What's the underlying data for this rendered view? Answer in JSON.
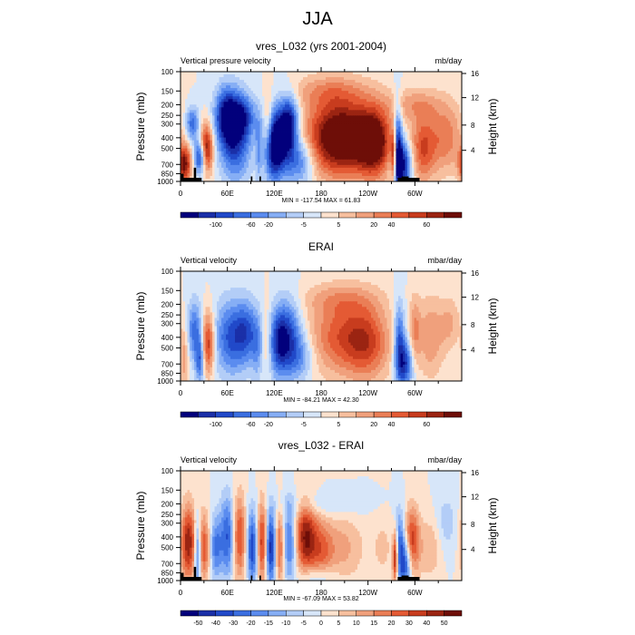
{
  "title": "JJA",
  "chart_data": [
    {
      "type": "heatmap",
      "title": "vres_L032 (yrs 2001-2004)",
      "left_label": "Vertical pressure velocity",
      "units": "mb/day",
      "ylabel": "Pressure (mb)",
      "ylabel_right": "Height (km)",
      "pressure_ticks": [
        "100",
        "150",
        "200",
        "250",
        "300",
        "400",
        "500",
        "700",
        "850",
        "1000"
      ],
      "height_ticks": [
        "16",
        "12",
        "8",
        "4"
      ],
      "lon_ticks": [
        "0",
        "60E",
        "120E",
        "180",
        "120W",
        "60W"
      ],
      "stats": "MIN = -117.54  MAX = 61.83",
      "colorbar_labels": [
        "-100",
        "-60",
        "-20",
        "-5",
        "5",
        "20",
        "40",
        "60"
      ],
      "colorbar_colors": [
        "#02007c",
        "#1a2fa8",
        "#2149c9",
        "#3a6ee0",
        "#5b8cef",
        "#86aef5",
        "#b3cdf7",
        "#d7e6f9",
        "#fde2ce",
        "#f7bf9e",
        "#f0a07c",
        "#ea7e56",
        "#e45a34",
        "#c83c1e",
        "#9b2412",
        "#6e0e08"
      ],
      "blobs": [
        {
          "lon": 5,
          "p": 700,
          "rx": 6,
          "ry": 0.55,
          "v": 0.9
        },
        {
          "lon": 15,
          "p": 300,
          "rx": 6,
          "ry": 0.5,
          "v": -0.6
        },
        {
          "lon": 25,
          "p": 600,
          "rx": 5,
          "ry": 0.5,
          "v": -0.9
        },
        {
          "lon": 33,
          "p": 500,
          "rx": 6,
          "ry": 0.7,
          "v": 0.95
        },
        {
          "lon": 58,
          "p": 250,
          "rx": 10,
          "ry": 0.8,
          "v": -0.75
        },
        {
          "lon": 70,
          "p": 400,
          "rx": 14,
          "ry": 1.2,
          "v": -0.8
        },
        {
          "lon": 80,
          "p": 250,
          "rx": 12,
          "ry": 0.6,
          "v": -0.5
        },
        {
          "lon": 100,
          "p": 500,
          "rx": 3,
          "ry": 1.0,
          "v": -0.3
        },
        {
          "lon": 112,
          "p": 300,
          "rx": 4,
          "ry": 0.9,
          "v": 0.35
        },
        {
          "lon": 118,
          "p": 500,
          "rx": 8,
          "ry": 1.0,
          "v": -0.8
        },
        {
          "lon": 128,
          "p": 400,
          "rx": 9,
          "ry": 1.0,
          "v": -0.7
        },
        {
          "lon": 140,
          "p": 300,
          "rx": 8,
          "ry": 0.8,
          "v": -0.9
        },
        {
          "lon": 152,
          "p": 650,
          "rx": 14,
          "ry": 0.7,
          "v": -0.6
        },
        {
          "lon": 190,
          "p": 400,
          "rx": 25,
          "ry": 1.1,
          "v": 0.8
        },
        {
          "lon": 225,
          "p": 400,
          "rx": 25,
          "ry": 1.1,
          "v": 0.8
        },
        {
          "lon": 250,
          "p": 450,
          "rx": 14,
          "ry": 1.0,
          "v": 0.75
        },
        {
          "lon": 190,
          "p": 150,
          "rx": 35,
          "ry": 0.5,
          "v": 0.3
        },
        {
          "lon": 278,
          "p": 500,
          "rx": 4,
          "ry": 1.3,
          "v": -0.9
        },
        {
          "lon": 285,
          "p": 700,
          "rx": 8,
          "ry": 0.7,
          "v": -0.95
        },
        {
          "lon": 273,
          "p": 600,
          "rx": 2.5,
          "ry": 0.8,
          "v": 0.9
        },
        {
          "lon": 310,
          "p": 500,
          "rx": 12,
          "ry": 1.0,
          "v": 0.6
        },
        {
          "lon": 340,
          "p": 400,
          "rx": 15,
          "ry": 1.0,
          "v": 0.45
        },
        {
          "lon": 300,
          "p": 200,
          "rx": 25,
          "ry": 0.5,
          "v": 0.3
        }
      ],
      "topography": [
        [
          0,
          4,
          850
        ],
        [
          17,
          20,
          750
        ],
        [
          90,
          92,
          900
        ],
        [
          101,
          103,
          900
        ],
        [
          283,
          292,
          900
        ]
      ]
    },
    {
      "type": "heatmap",
      "title": "ERAI",
      "left_label": "Vertical velocity",
      "units": "mbar/day",
      "ylabel": "Pressure (mb)",
      "ylabel_right": "Height (km)",
      "pressure_ticks": [
        "100",
        "150",
        "200",
        "250",
        "300",
        "400",
        "500",
        "700",
        "850",
        "1000"
      ],
      "height_ticks": [
        "16",
        "12",
        "8",
        "4"
      ],
      "lon_ticks": [
        "0",
        "60E",
        "120E",
        "180",
        "120W",
        "60W"
      ],
      "stats": "MIN = -84.21  MAX = 42.30",
      "colorbar_labels": [
        "-100",
        "-60",
        "-20",
        "-5",
        "5",
        "20",
        "40",
        "60"
      ],
      "colorbar_colors": [
        "#02007c",
        "#1a2fa8",
        "#2149c9",
        "#3a6ee0",
        "#5b8cef",
        "#86aef5",
        "#b3cdf7",
        "#d7e6f9",
        "#fde2ce",
        "#f7bf9e",
        "#f0a07c",
        "#ea7e56",
        "#e45a34",
        "#c83c1e",
        "#9b2412",
        "#6e0e08"
      ],
      "blobs": [
        {
          "lon": 5,
          "p": 600,
          "rx": 4,
          "ry": 0.9,
          "v": 0.35
        },
        {
          "lon": 18,
          "p": 350,
          "rx": 7,
          "ry": 0.9,
          "v": -0.55
        },
        {
          "lon": 25,
          "p": 650,
          "rx": 4,
          "ry": 0.7,
          "v": -0.6
        },
        {
          "lon": 35,
          "p": 450,
          "rx": 6,
          "ry": 0.9,
          "v": 0.8
        },
        {
          "lon": 65,
          "p": 400,
          "rx": 16,
          "ry": 1.1,
          "v": -0.65
        },
        {
          "lon": 85,
          "p": 350,
          "rx": 10,
          "ry": 0.9,
          "v": -0.45
        },
        {
          "lon": 98,
          "p": 500,
          "rx": 5,
          "ry": 1.0,
          "v": -0.3
        },
        {
          "lon": 110,
          "p": 400,
          "rx": 4,
          "ry": 1.0,
          "v": 0.25
        },
        {
          "lon": 125,
          "p": 450,
          "rx": 9,
          "ry": 1.0,
          "v": -0.55
        },
        {
          "lon": 138,
          "p": 400,
          "rx": 12,
          "ry": 1.1,
          "v": -0.7
        },
        {
          "lon": 155,
          "p": 600,
          "rx": 12,
          "ry": 0.7,
          "v": -0.35
        },
        {
          "lon": 205,
          "p": 400,
          "rx": 30,
          "ry": 1.1,
          "v": 0.55
        },
        {
          "lon": 240,
          "p": 450,
          "rx": 20,
          "ry": 1.1,
          "v": 0.5
        },
        {
          "lon": 205,
          "p": 180,
          "rx": 35,
          "ry": 0.5,
          "v": 0.25
        },
        {
          "lon": 280,
          "p": 450,
          "rx": 5,
          "ry": 1.2,
          "v": -0.65
        },
        {
          "lon": 288,
          "p": 700,
          "rx": 7,
          "ry": 0.7,
          "v": -0.7
        },
        {
          "lon": 300,
          "p": 350,
          "rx": 5,
          "ry": 1.0,
          "v": 0.35
        },
        {
          "lon": 320,
          "p": 400,
          "rx": 12,
          "ry": 1.2,
          "v": 0.35
        },
        {
          "lon": 345,
          "p": 300,
          "rx": 10,
          "ry": 0.8,
          "v": 0.25
        }
      ],
      "topography": []
    },
    {
      "type": "heatmap",
      "title": "vres_L032 - ERAI",
      "left_label": "Vertical velocity",
      "units": "mbar/day",
      "ylabel": "Pressure (mb)",
      "ylabel_right": "Height (km)",
      "pressure_ticks": [
        "100",
        "150",
        "200",
        "250",
        "300",
        "400",
        "500",
        "700",
        "850",
        "1000"
      ],
      "height_ticks": [
        "16",
        "12",
        "8",
        "4"
      ],
      "lon_ticks": [
        "0",
        "60E",
        "120E",
        "180",
        "120W",
        "60W"
      ],
      "stats": "MIN = -67.09  MAX = 53.82",
      "colorbar_labels": [
        "-50",
        "-40",
        "-30",
        "-20",
        "-15",
        "-10",
        "-5",
        "0",
        "5",
        "10",
        "15",
        "20",
        "30",
        "40",
        "50"
      ],
      "colorbar_colors": [
        "#02007c",
        "#1a2fa8",
        "#2149c9",
        "#3a6ee0",
        "#5b8cef",
        "#86aef5",
        "#b3cdf7",
        "#d7e6f9",
        "#fde2ce",
        "#f7bf9e",
        "#f0a07c",
        "#ea7e56",
        "#e45a34",
        "#c83c1e",
        "#9b2412",
        "#6e0e08"
      ],
      "blobs": [
        {
          "lon": 10,
          "p": 450,
          "rx": 7,
          "ry": 1.1,
          "v": 0.85
        },
        {
          "lon": 22,
          "p": 550,
          "rx": 3,
          "ry": 1.0,
          "v": -0.7
        },
        {
          "lon": 30,
          "p": 500,
          "rx": 5,
          "ry": 1.0,
          "v": 0.6
        },
        {
          "lon": 45,
          "p": 500,
          "rx": 5,
          "ry": 0.9,
          "v": -0.5
        },
        {
          "lon": 60,
          "p": 400,
          "rx": 7,
          "ry": 1.2,
          "v": -0.65
        },
        {
          "lon": 75,
          "p": 400,
          "rx": 6,
          "ry": 1.2,
          "v": 0.7
        },
        {
          "lon": 92,
          "p": 500,
          "rx": 5,
          "ry": 1.1,
          "v": -0.75
        },
        {
          "lon": 105,
          "p": 450,
          "rx": 5,
          "ry": 1.2,
          "v": 0.8
        },
        {
          "lon": 115,
          "p": 500,
          "rx": 5,
          "ry": 1.1,
          "v": -0.9
        },
        {
          "lon": 127,
          "p": 500,
          "rx": 4,
          "ry": 1.1,
          "v": 0.6
        },
        {
          "lon": 140,
          "p": 450,
          "rx": 6,
          "ry": 1.1,
          "v": -0.6
        },
        {
          "lon": 160,
          "p": 400,
          "rx": 10,
          "ry": 1.1,
          "v": 0.85
        },
        {
          "lon": 180,
          "p": 550,
          "rx": 10,
          "ry": 1.0,
          "v": 0.4
        },
        {
          "lon": 205,
          "p": 500,
          "rx": 20,
          "ry": 1.0,
          "v": 0.3
        },
        {
          "lon": 175,
          "p": 950,
          "rx": 15,
          "ry": 0.4,
          "v": -0.35
        },
        {
          "lon": 180,
          "p": 200,
          "rx": 40,
          "ry": 0.4,
          "v": -0.2
        },
        {
          "lon": 260,
          "p": 500,
          "rx": 12,
          "ry": 1.0,
          "v": 0.15
        },
        {
          "lon": 280,
          "p": 450,
          "rx": 5,
          "ry": 1.0,
          "v": -0.55
        },
        {
          "lon": 288,
          "p": 700,
          "rx": 6,
          "ry": 0.8,
          "v": -0.75
        },
        {
          "lon": 296,
          "p": 450,
          "rx": 7,
          "ry": 1.0,
          "v": 0.75
        },
        {
          "lon": 275,
          "p": 600,
          "rx": 2.5,
          "ry": 0.8,
          "v": 0.95
        },
        {
          "lon": 320,
          "p": 500,
          "rx": 10,
          "ry": 0.9,
          "v": 0.25
        },
        {
          "lon": 340,
          "p": 300,
          "rx": 10,
          "ry": 0.9,
          "v": -0.2
        }
      ],
      "topography": [
        [
          0,
          4,
          850
        ],
        [
          17,
          20,
          750
        ],
        [
          90,
          92,
          900
        ],
        [
          101,
          103,
          900
        ],
        [
          283,
          292,
          900
        ]
      ]
    }
  ]
}
